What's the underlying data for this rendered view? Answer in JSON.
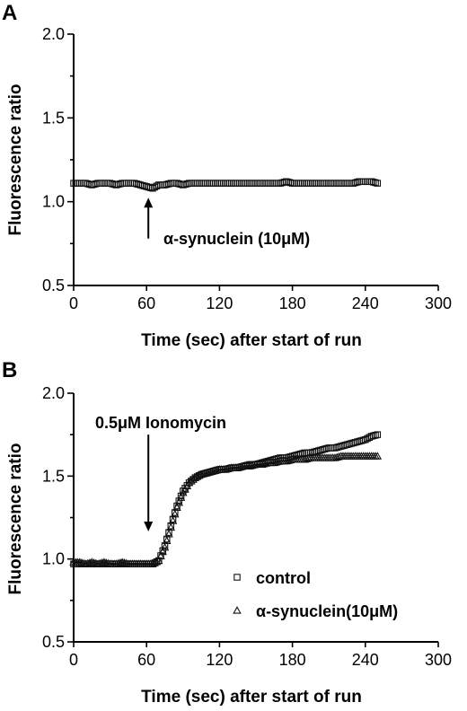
{
  "chart_data": [
    {
      "panel": "A",
      "type": "scatter",
      "xlabel": "Time (sec) after start of run",
      "ylabel": "Fluorescence ratio",
      "xlim": [
        0,
        300
      ],
      "ylim": [
        0.5,
        2.0
      ],
      "xticks": [
        "0",
        "60",
        "120",
        "180",
        "240",
        "300"
      ],
      "yticks": [
        "0.5",
        "1.0",
        "1.5",
        "2.0"
      ],
      "annotations": [
        {
          "text": "α-synuclein (10μM)",
          "x": 60,
          "arrow": "up"
        }
      ],
      "series": [
        {
          "marker": "square",
          "x": [
            0,
            5,
            10,
            15,
            20,
            25,
            30,
            35,
            40,
            45,
            50,
            55,
            60,
            65,
            70,
            75,
            80,
            85,
            90,
            95,
            100,
            105,
            110,
            115,
            120,
            125,
            130,
            135,
            140,
            145,
            150,
            155,
            160,
            165,
            170,
            175,
            180,
            185,
            190,
            195,
            200,
            205,
            210,
            215,
            220,
            225,
            230,
            235,
            240,
            245,
            250
          ],
          "y": [
            1.11,
            1.11,
            1.11,
            1.1,
            1.11,
            1.11,
            1.11,
            1.1,
            1.11,
            1.11,
            1.11,
            1.1,
            1.09,
            1.08,
            1.1,
            1.1,
            1.11,
            1.11,
            1.1,
            1.11,
            1.11,
            1.11,
            1.11,
            1.11,
            1.11,
            1.11,
            1.11,
            1.11,
            1.11,
            1.11,
            1.11,
            1.11,
            1.11,
            1.11,
            1.11,
            1.12,
            1.11,
            1.11,
            1.11,
            1.11,
            1.11,
            1.11,
            1.11,
            1.11,
            1.11,
            1.11,
            1.11,
            1.12,
            1.12,
            1.12,
            1.11
          ]
        }
      ]
    },
    {
      "panel": "B",
      "type": "scatter",
      "xlabel": "Time (sec) after start of run",
      "ylabel": "Fluorescence ratio",
      "xlim": [
        0,
        300
      ],
      "ylim": [
        0.5,
        2.0
      ],
      "xticks": [
        "0",
        "60",
        "120",
        "180",
        "240",
        "300"
      ],
      "yticks": [
        "0.5",
        "1.0",
        "1.5",
        "2.0"
      ],
      "annotations": [
        {
          "text": "0.5μM Ionomycin",
          "x": 60,
          "arrow": "down"
        }
      ],
      "legend_position": "bottom-right",
      "series": [
        {
          "name": "control",
          "marker": "square",
          "x": [
            0,
            5,
            10,
            15,
            20,
            25,
            30,
            35,
            40,
            45,
            50,
            55,
            60,
            65,
            70,
            75,
            80,
            85,
            90,
            95,
            100,
            105,
            110,
            115,
            120,
            125,
            130,
            135,
            140,
            145,
            150,
            155,
            160,
            165,
            170,
            175,
            180,
            185,
            190,
            195,
            200,
            205,
            210,
            215,
            220,
            225,
            230,
            235,
            240,
            245,
            250
          ],
          "y": [
            0.97,
            0.97,
            0.97,
            0.97,
            0.97,
            0.97,
            0.97,
            0.97,
            0.97,
            0.97,
            0.97,
            0.97,
            0.97,
            0.97,
            0.99,
            1.08,
            1.2,
            1.32,
            1.41,
            1.46,
            1.49,
            1.51,
            1.52,
            1.53,
            1.54,
            1.54,
            1.55,
            1.55,
            1.56,
            1.57,
            1.57,
            1.58,
            1.59,
            1.6,
            1.61,
            1.61,
            1.62,
            1.63,
            1.64,
            1.64,
            1.65,
            1.66,
            1.67,
            1.67,
            1.68,
            1.69,
            1.7,
            1.71,
            1.72,
            1.74,
            1.75
          ]
        },
        {
          "name": "α-synuclein(10μM)",
          "marker": "triangle",
          "x": [
            0,
            5,
            10,
            15,
            20,
            25,
            30,
            35,
            40,
            45,
            50,
            55,
            60,
            65,
            70,
            75,
            80,
            85,
            90,
            95,
            100,
            105,
            110,
            115,
            120,
            125,
            130,
            135,
            140,
            145,
            150,
            155,
            160,
            165,
            170,
            175,
            180,
            185,
            190,
            195,
            200,
            205,
            210,
            215,
            220,
            225,
            230,
            235,
            240,
            245,
            250
          ],
          "y": [
            0.98,
            0.98,
            0.97,
            0.98,
            0.97,
            0.98,
            0.97,
            0.97,
            0.98,
            0.97,
            0.97,
            0.97,
            0.97,
            0.97,
            0.99,
            1.07,
            1.19,
            1.31,
            1.4,
            1.46,
            1.49,
            1.51,
            1.52,
            1.53,
            1.54,
            1.54,
            1.55,
            1.55,
            1.56,
            1.56,
            1.57,
            1.57,
            1.58,
            1.58,
            1.59,
            1.59,
            1.6,
            1.6,
            1.6,
            1.61,
            1.61,
            1.61,
            1.61,
            1.61,
            1.62,
            1.62,
            1.62,
            1.62,
            1.62,
            1.62,
            1.62
          ]
        }
      ]
    }
  ]
}
